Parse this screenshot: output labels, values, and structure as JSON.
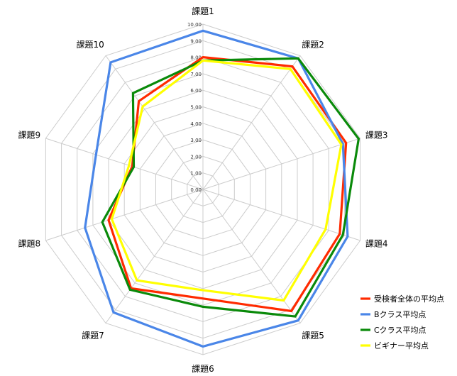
{
  "chart_data": {
    "type": "radar",
    "categories": [
      "課題1",
      "課題2",
      "課題3",
      "課題4",
      "課題5",
      "課題6",
      "課題7",
      "課題8",
      "課題9",
      "課題10"
    ],
    "ylim": [
      0,
      10
    ],
    "ticks": [
      "0.00",
      "1.00",
      "2.00",
      "3.00",
      "4.00",
      "5.00",
      "6.00",
      "7.00",
      "8.00",
      "9.00",
      "10.00"
    ],
    "grid": true,
    "legend_position": "bottom-right",
    "series": [
      {
        "name": "受検者全体の平均点",
        "color": "#ff2a00",
        "values": [
          8.0,
          9.2,
          9.1,
          8.7,
          9.1,
          6.6,
          7.4,
          6.0,
          4.5,
          6.6
        ]
      },
      {
        "name": "Bクラス平均点",
        "color": "#4a86e8",
        "values": [
          9.6,
          9.8,
          8.9,
          9.2,
          9.8,
          9.5,
          9.2,
          7.5,
          6.8,
          9.5
        ]
      },
      {
        "name": "Cクラス平均点",
        "color": "#0a8a0a",
        "values": [
          7.8,
          9.8,
          9.9,
          8.9,
          9.5,
          7.1,
          7.5,
          6.4,
          4.4,
          7.2
        ]
      },
      {
        "name": "ビギナー平均点",
        "color": "#ffff00",
        "values": [
          7.8,
          9.0,
          8.8,
          7.8,
          8.3,
          6.1,
          6.8,
          5.8,
          4.7,
          6.2
        ]
      }
    ]
  }
}
